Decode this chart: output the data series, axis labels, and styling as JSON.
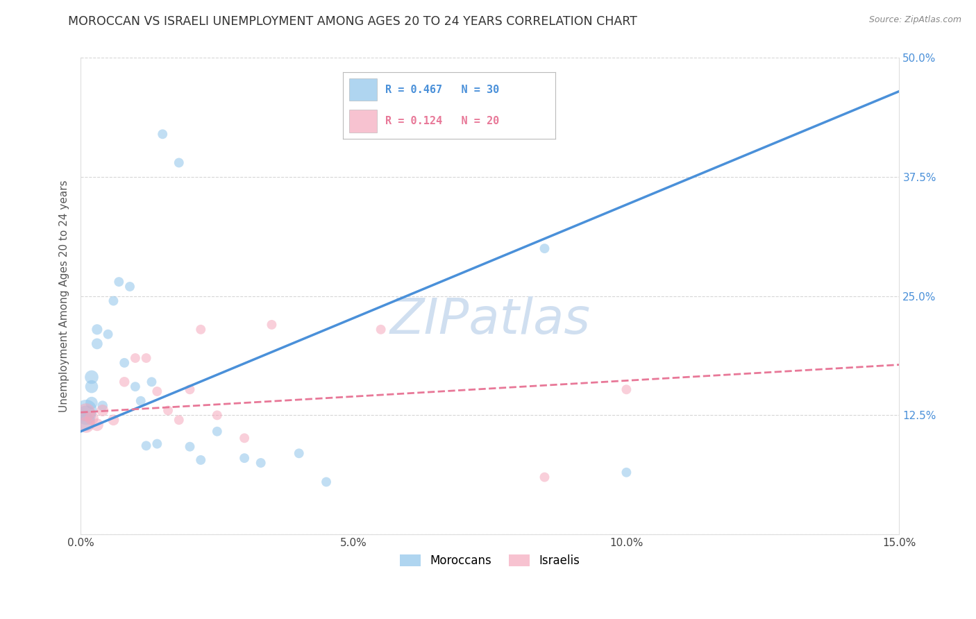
{
  "title": "MOROCCAN VS ISRAELI UNEMPLOYMENT AMONG AGES 20 TO 24 YEARS CORRELATION CHART",
  "source": "Source: ZipAtlas.com",
  "ylabel": "Unemployment Among Ages 20 to 24 years",
  "xlim": [
    0.0,
    0.15
  ],
  "ylim": [
    0.0,
    0.5
  ],
  "xticks": [
    0.0,
    0.05,
    0.1,
    0.15
  ],
  "xticklabels": [
    "0.0%",
    "5.0%",
    "10.0%",
    "15.0%"
  ],
  "yticks": [
    0.0,
    0.125,
    0.25,
    0.375,
    0.5
  ],
  "yticklabels": [
    "",
    "12.5%",
    "25.0%",
    "37.5%",
    "50.0%"
  ],
  "background_color": "#ffffff",
  "moroccan_x": [
    0.001,
    0.001,
    0.001,
    0.002,
    0.002,
    0.002,
    0.003,
    0.003,
    0.004,
    0.005,
    0.006,
    0.007,
    0.008,
    0.009,
    0.01,
    0.011,
    0.012,
    0.013,
    0.014,
    0.015,
    0.018,
    0.02,
    0.022,
    0.025,
    0.03,
    0.033,
    0.04,
    0.045,
    0.085,
    0.1
  ],
  "moroccan_y": [
    0.13,
    0.125,
    0.118,
    0.165,
    0.155,
    0.138,
    0.2,
    0.215,
    0.135,
    0.21,
    0.245,
    0.265,
    0.18,
    0.26,
    0.155,
    0.14,
    0.093,
    0.16,
    0.095,
    0.42,
    0.39,
    0.092,
    0.078,
    0.108,
    0.08,
    0.075,
    0.085,
    0.055,
    0.3,
    0.065
  ],
  "moroccan_sizes": [
    500,
    400,
    350,
    200,
    180,
    160,
    130,
    120,
    110,
    100,
    100,
    100,
    100,
    100,
    100,
    100,
    100,
    100,
    100,
    100,
    100,
    100,
    100,
    100,
    100,
    100,
    100,
    100,
    100,
    100
  ],
  "israeli_x": [
    0.001,
    0.001,
    0.002,
    0.003,
    0.004,
    0.006,
    0.008,
    0.01,
    0.012,
    0.014,
    0.016,
    0.018,
    0.02,
    0.022,
    0.025,
    0.03,
    0.035,
    0.055,
    0.085,
    0.1
  ],
  "israeli_y": [
    0.128,
    0.115,
    0.122,
    0.115,
    0.13,
    0.12,
    0.16,
    0.185,
    0.185,
    0.15,
    0.13,
    0.12,
    0.152,
    0.215,
    0.125,
    0.101,
    0.22,
    0.215,
    0.06,
    0.152
  ],
  "israeli_sizes": [
    350,
    280,
    200,
    170,
    150,
    130,
    110,
    100,
    100,
    100,
    100,
    100,
    100,
    100,
    100,
    100,
    100,
    100,
    100,
    100
  ],
  "moroccan_color": "#8ec4ea",
  "israeli_color": "#f5a8bc",
  "moroccan_line_color": "#4a90d9",
  "israeli_line_color": "#e87898",
  "R_moroccan": 0.467,
  "N_moroccan": 30,
  "R_israeli": 0.124,
  "N_israeli": 20,
  "legend_label_moroccan": "Moroccans",
  "legend_label_israeli": "Israelis",
  "title_fontsize": 12.5,
  "axis_label_fontsize": 11,
  "tick_fontsize": 11,
  "legend_fontsize": 12,
  "watermark_text": "ZIPatlas",
  "watermark_color": "#d0dff0"
}
